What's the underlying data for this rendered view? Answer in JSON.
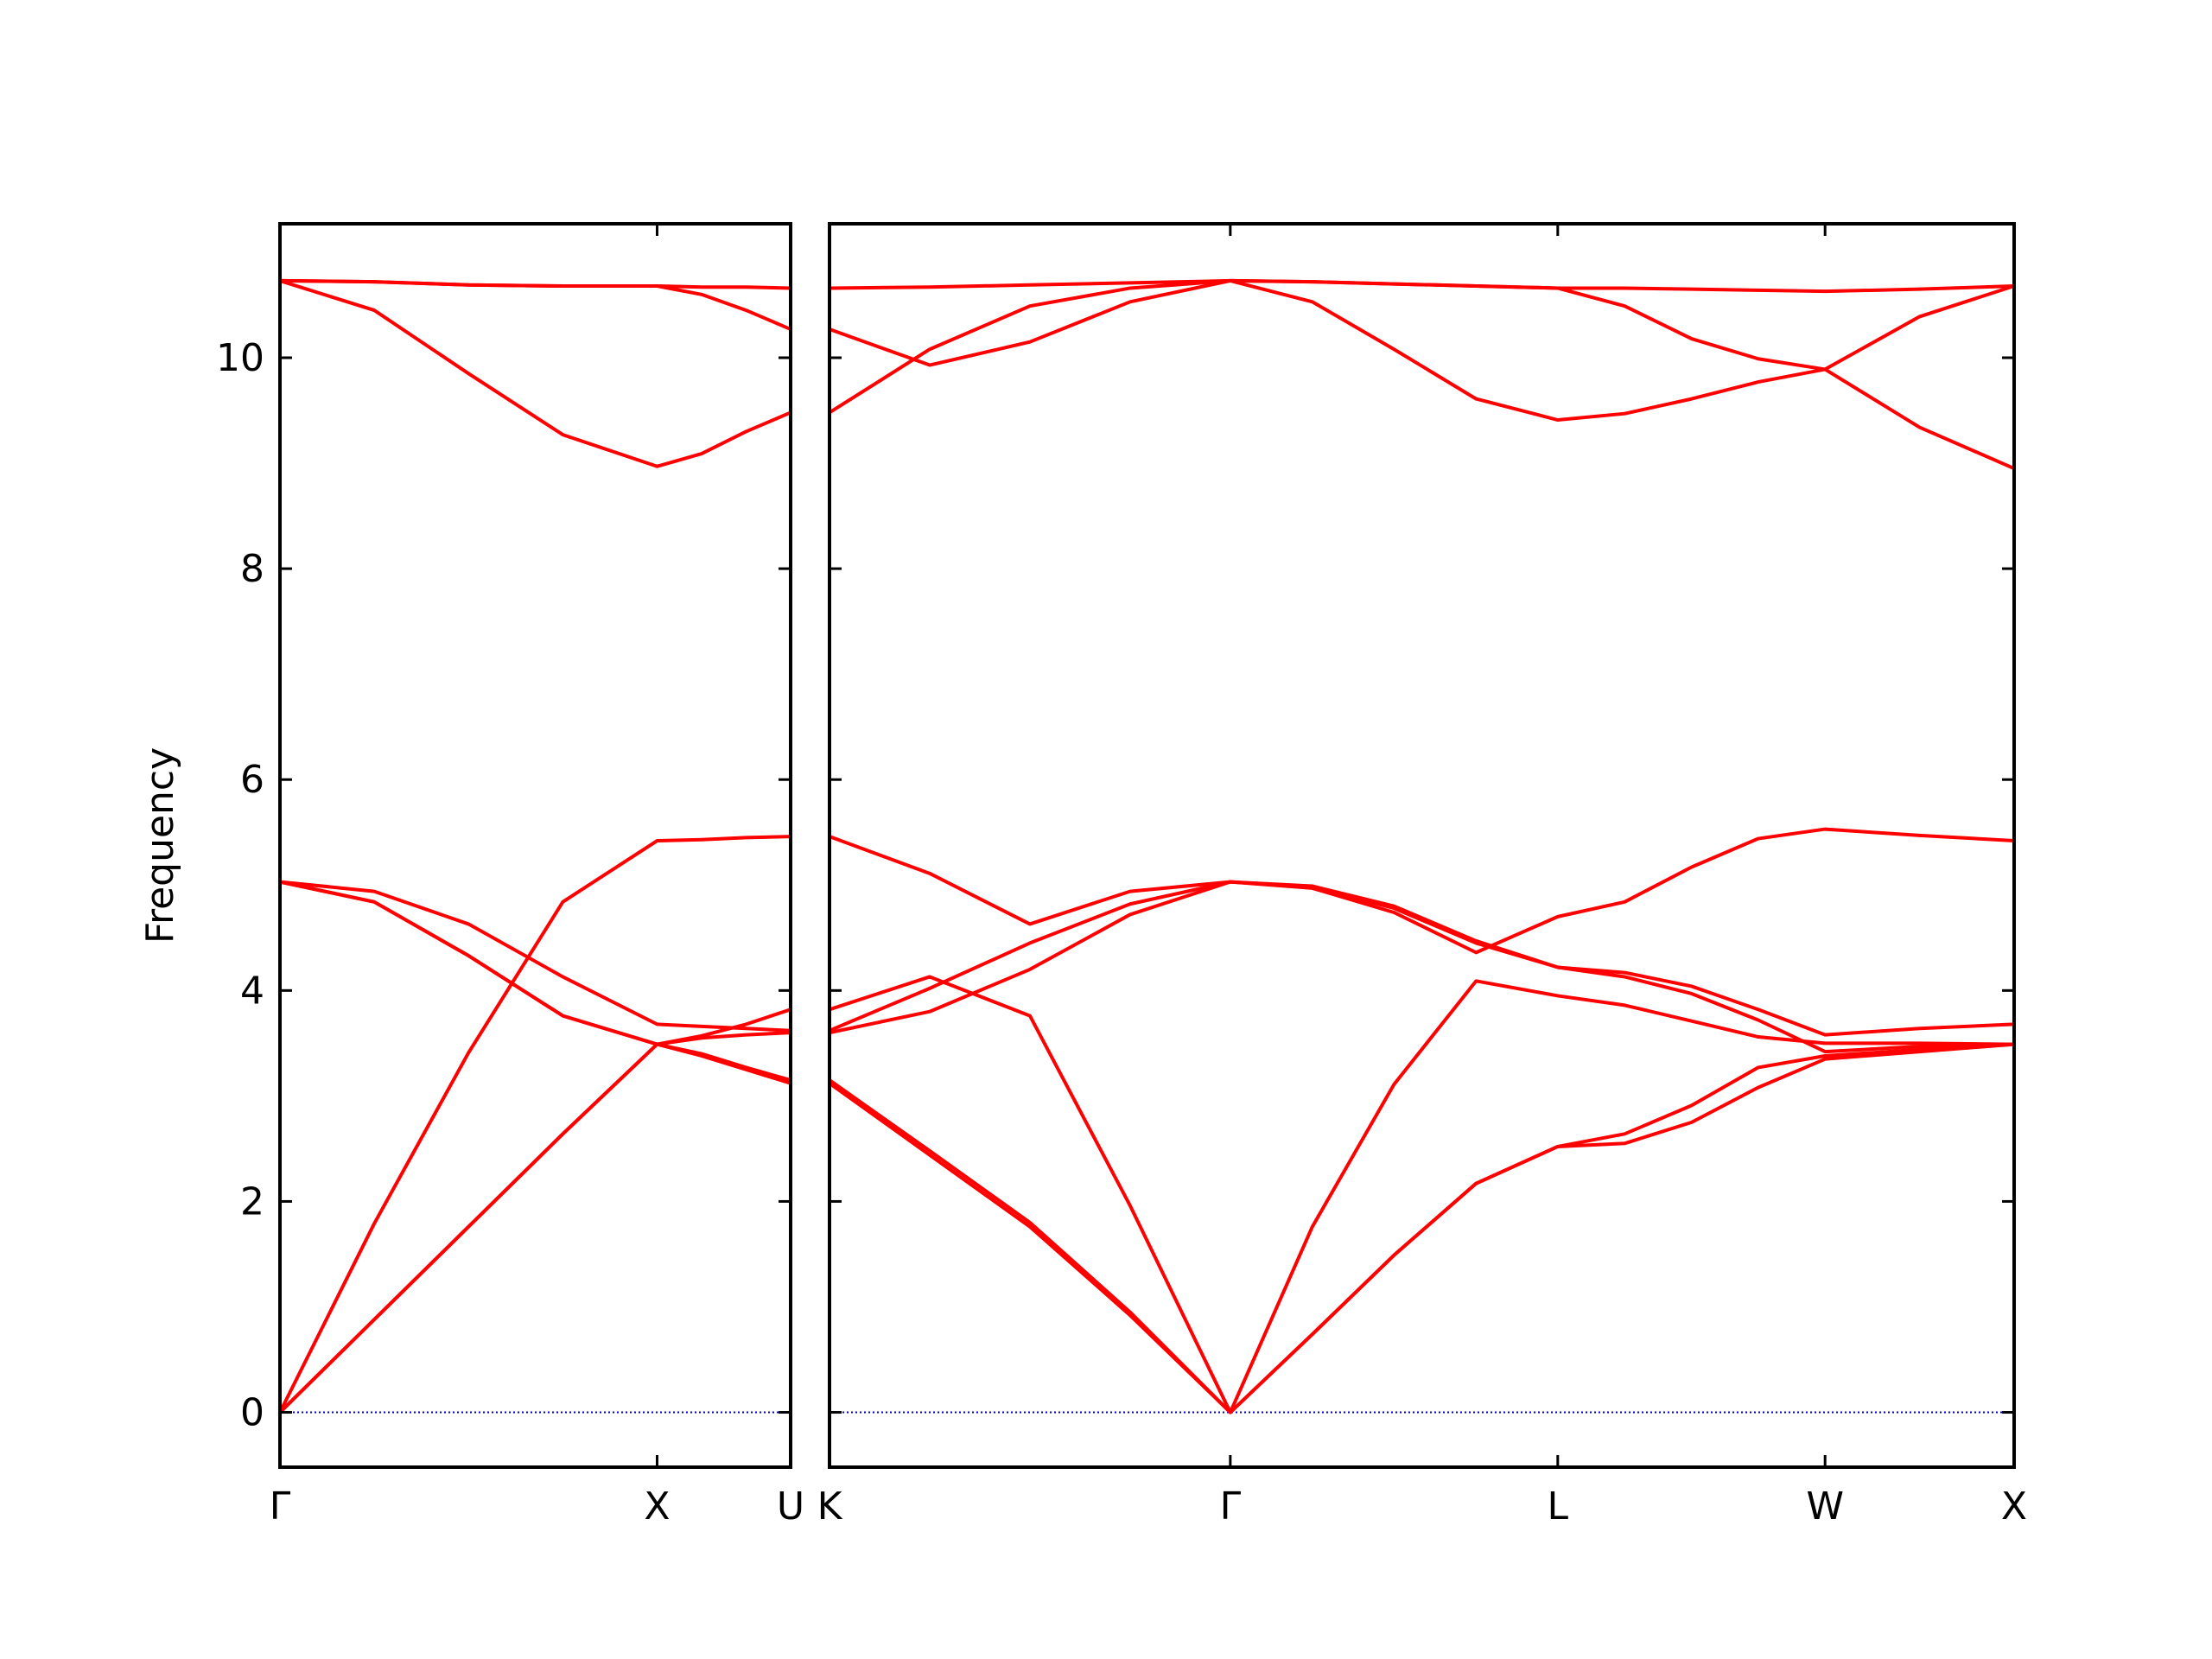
{
  "chart_data": [
    {
      "type": "line",
      "ylabel": "Frequency",
      "x": [
        0,
        0.25,
        0.5,
        0.75,
        1,
        1.118,
        1.236,
        1.354
      ],
      "xlim": [
        0,
        1.354
      ],
      "ylim": [
        -0.52,
        11.27
      ],
      "xticks": [
        {
          "value": 0,
          "label": "Γ"
        },
        {
          "value": 1,
          "label": "X"
        },
        {
          "value": 1.354,
          "label": "U"
        }
      ],
      "yticks": [
        0,
        2,
        4,
        6,
        8,
        10
      ],
      "show_yticklabels": true,
      "baseline": 0,
      "baseline_color": "#0000cc",
      "series": [
        {
          "color": "#ff0000",
          "values": [
            0,
            0.88,
            1.76,
            2.64,
            3.49,
            3.38,
            3.25,
            3.12
          ]
        },
        {
          "color": "#ff0000",
          "values": [
            0,
            0.88,
            1.76,
            2.64,
            3.49,
            3.4,
            3.27,
            3.15
          ]
        },
        {
          "color": "#ff0000",
          "values": [
            0,
            1.79,
            3.41,
            4.84,
            5.42,
            5.43,
            5.45,
            5.46
          ]
        },
        {
          "color": "#ff0000",
          "values": [
            5.03,
            4.84,
            4.33,
            3.76,
            3.49,
            3.55,
            3.58,
            3.6
          ]
        },
        {
          "color": "#ff0000",
          "values": [
            5.03,
            4.84,
            4.33,
            3.76,
            3.49,
            3.57,
            3.68,
            3.82
          ]
        },
        {
          "color": "#ff0000",
          "values": [
            5.03,
            4.94,
            4.63,
            4.13,
            3.68,
            3.66,
            3.64,
            3.62
          ]
        },
        {
          "color": "#ff0000",
          "values": [
            10.73,
            10.45,
            9.85,
            9.27,
            8.97,
            9.09,
            9.3,
            9.48
          ]
        },
        {
          "color": "#ff0000",
          "values": [
            10.73,
            10.72,
            10.69,
            10.68,
            10.68,
            10.6,
            10.45,
            10.27
          ]
        },
        {
          "color": "#ff0000",
          "values": [
            10.73,
            10.72,
            10.69,
            10.68,
            10.68,
            10.67,
            10.67,
            10.66
          ]
        }
      ]
    },
    {
      "type": "line",
      "x": [
        1.354,
        1.619,
        1.884,
        2.149,
        2.414,
        2.631,
        2.847,
        3.064,
        3.28,
        3.457,
        3.634,
        3.81,
        3.987,
        4.237,
        4.487
      ],
      "xlim": [
        1.354,
        4.487
      ],
      "ylim": [
        -0.52,
        11.27
      ],
      "xticks": [
        {
          "value": 1.354,
          "label": "K"
        },
        {
          "value": 2.414,
          "label": "Γ"
        },
        {
          "value": 3.28,
          "label": "L"
        },
        {
          "value": 3.987,
          "label": "W"
        },
        {
          "value": 4.487,
          "label": "X"
        }
      ],
      "yticks": [
        0,
        2,
        4,
        6,
        8,
        10
      ],
      "show_yticklabels": false,
      "baseline": 0,
      "baseline_color": "#0000cc",
      "series": [
        {
          "color": "#ff0000",
          "values": [
            3.12,
            2.44,
            1.76,
            0.92,
            0,
            0.74,
            1.49,
            2.17,
            2.52,
            2.55,
            2.75,
            3.08,
            3.35,
            3.42,
            3.49
          ]
        },
        {
          "color": "#ff0000",
          "values": [
            3.15,
            2.48,
            1.8,
            0.95,
            0,
            0.74,
            1.49,
            2.17,
            2.52,
            2.64,
            2.91,
            3.27,
            3.38,
            3.44,
            3.49
          ]
        },
        {
          "color": "#ff0000",
          "values": [
            3.82,
            4.13,
            3.76,
            1.96,
            0,
            1.76,
            3.11,
            4.09,
            3.95,
            3.86,
            3.71,
            3.56,
            3.5,
            3.5,
            3.49
          ]
        },
        {
          "color": "#ff0000",
          "values": [
            3.6,
            3.8,
            4.2,
            4.72,
            5.03,
            4.98,
            4.78,
            4.45,
            4.22,
            4.13,
            3.97,
            3.72,
            3.42,
            3.47,
            3.49
          ]
        },
        {
          "color": "#ff0000",
          "values": [
            3.62,
            4.02,
            4.45,
            4.82,
            5.03,
            4.99,
            4.8,
            4.47,
            4.22,
            4.17,
            4.04,
            3.82,
            3.58,
            3.64,
            3.68
          ]
        },
        {
          "color": "#ff0000",
          "values": [
            5.46,
            5.11,
            4.63,
            4.94,
            5.03,
            4.97,
            4.74,
            4.36,
            4.7,
            4.84,
            5.17,
            5.44,
            5.53,
            5.47,
            5.42
          ]
        },
        {
          "color": "#ff0000",
          "values": [
            9.48,
            10.08,
            10.49,
            10.66,
            10.73,
            10.53,
            10.08,
            9.61,
            9.41,
            9.47,
            9.61,
            9.77,
            9.89,
            9.34,
            8.95
          ]
        },
        {
          "color": "#ff0000",
          "values": [
            10.27,
            9.93,
            10.15,
            10.53,
            10.73,
            10.72,
            10.7,
            10.68,
            10.66,
            10.49,
            10.18,
            9.99,
            9.89,
            10.39,
            10.68
          ]
        },
        {
          "color": "#ff0000",
          "values": [
            10.66,
            10.67,
            10.69,
            10.71,
            10.73,
            10.72,
            10.7,
            10.68,
            10.66,
            10.66,
            10.65,
            10.64,
            10.63,
            10.65,
            10.68
          ]
        }
      ]
    }
  ]
}
